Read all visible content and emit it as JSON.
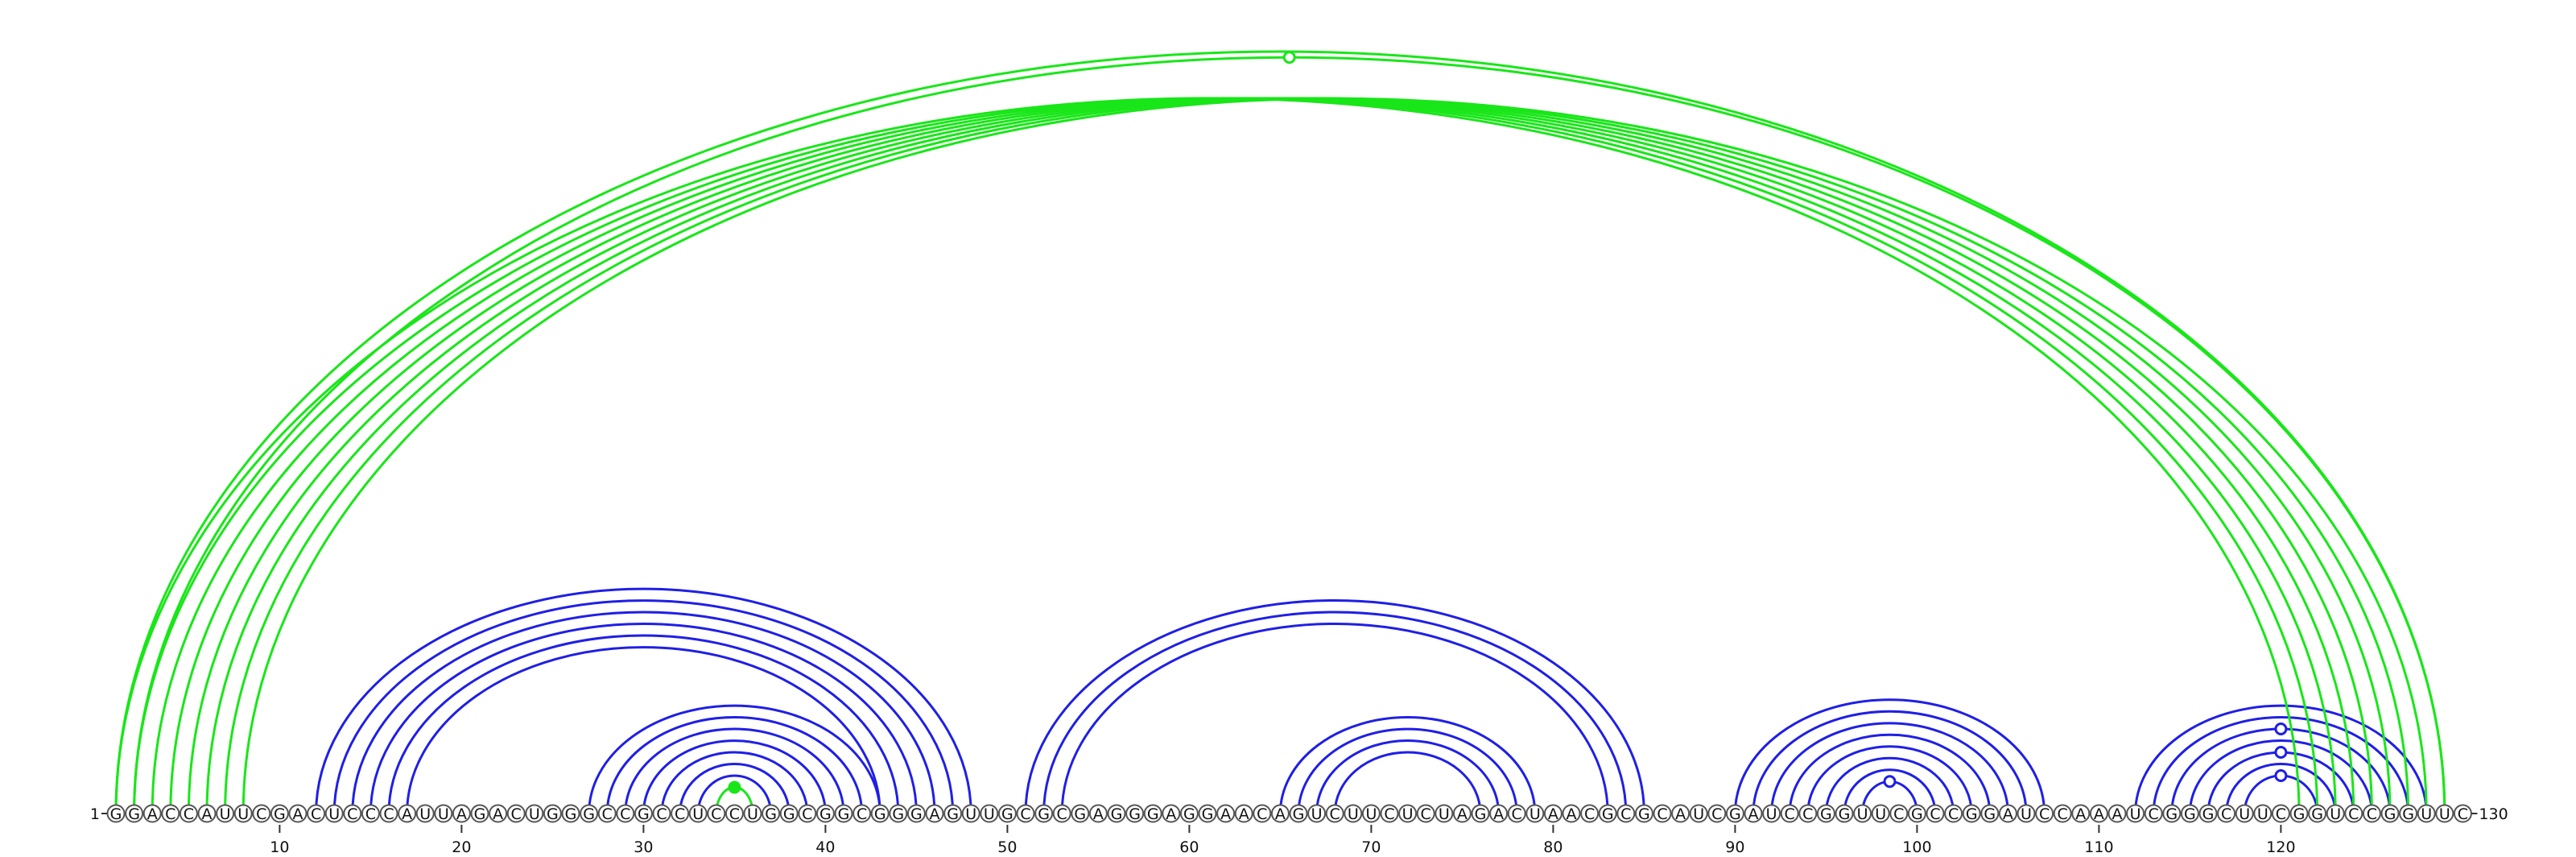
{
  "sequence": "GGACCAUUCGACUCCCAUUAGACUGGGCCGCCUCCUGGCGGCGGGAGUUGCGCGAGGGAGGAACAGUCUUCUCUAGACUAACGCGCAUCGAUCCGGUUCGCCGGAUCCAAAUCGGGCUUCGGUCCGGUUC",
  "start_label": "1",
  "end_label": "130",
  "ticks": [
    10,
    20,
    30,
    40,
    50,
    60,
    70,
    80,
    90,
    100,
    110,
    120
  ],
  "colors": {
    "intra_helix": "#1f1fe6",
    "pseudoknot": "#19e619",
    "noncanonical_marker_fill": "#ffffff"
  },
  "helices": [
    {
      "color": "intra_helix",
      "pairs": [
        [
          12,
          48
        ],
        [
          13,
          47
        ],
        [
          14,
          46
        ],
        [
          15,
          45
        ],
        [
          16,
          44
        ],
        [
          17,
          43
        ]
      ]
    },
    {
      "color": "intra_helix",
      "pairs": [
        [
          27,
          43
        ],
        [
          28,
          42
        ],
        [
          29,
          41
        ],
        [
          30,
          40
        ],
        [
          31,
          39
        ],
        [
          32,
          38
        ],
        [
          33,
          37
        ]
      ]
    },
    {
      "color": "pseudoknot",
      "pairs": [
        [
          34,
          36
        ]
      ]
    },
    {
      "color": "intra_helix",
      "pairs": [
        [
          51,
          85
        ],
        [
          52,
          84
        ],
        [
          53,
          83
        ]
      ]
    },
    {
      "color": "intra_helix",
      "pairs": [
        [
          65,
          79
        ],
        [
          66,
          78
        ],
        [
          67,
          77
        ],
        [
          68,
          76
        ]
      ]
    },
    {
      "color": "intra_helix",
      "pairs": [
        [
          90,
          107
        ],
        [
          91,
          106
        ],
        [
          92,
          105
        ],
        [
          93,
          104
        ],
        [
          94,
          103
        ],
        [
          95,
          102
        ],
        [
          96,
          101
        ],
        [
          97,
          100
        ]
      ]
    },
    {
      "color": "intra_helix",
      "pairs": [
        [
          112,
          128
        ],
        [
          113,
          127
        ],
        [
          114,
          126
        ],
        [
          115,
          125
        ],
        [
          116,
          124
        ],
        [
          117,
          123
        ],
        [
          118,
          122
        ]
      ]
    },
    {
      "color": "pseudoknot",
      "pairs": [
        [
          1,
          121
        ],
        [
          2,
          122
        ],
        [
          3,
          123
        ],
        [
          4,
          124
        ],
        [
          5,
          125
        ],
        [
          6,
          126
        ],
        [
          7,
          127
        ],
        [
          8,
          128
        ]
      ]
    },
    {
      "color": "pseudoknot",
      "pairs": [
        [
          1,
          129
        ],
        [
          2,
          129
        ]
      ]
    }
  ],
  "noncanonical_pairs": [
    [
      2,
      129
    ],
    [
      34,
      36
    ],
    [
      97,
      100
    ],
    [
      118,
      122
    ],
    [
      116,
      124
    ],
    [
      114,
      126
    ]
  ]
}
